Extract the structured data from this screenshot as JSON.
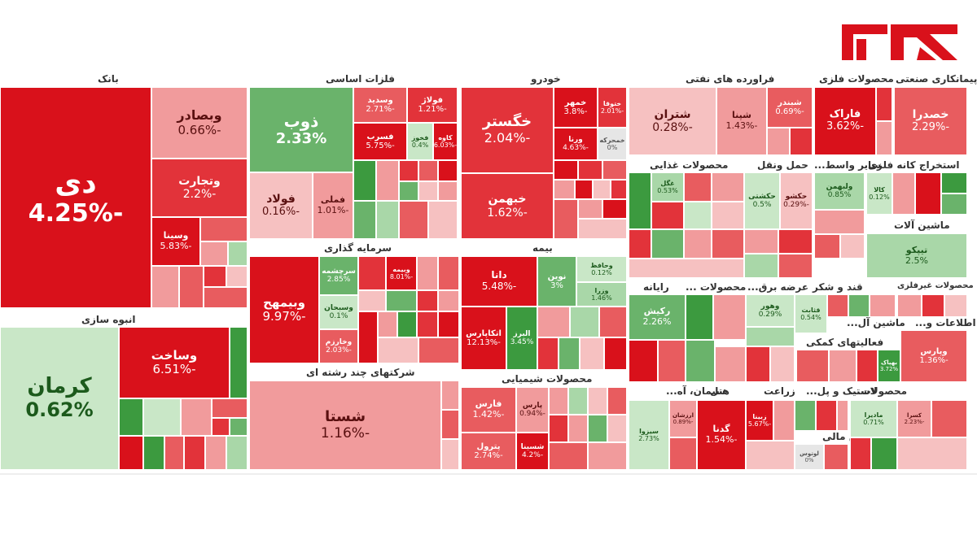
{
  "colors": {
    "strong_red": "#d9111b",
    "red": "#e2333a",
    "mid_red": "#e85c5f",
    "light_red": "#f19b9c",
    "pale_red": "#f6c1c1",
    "strong_green": "#3c9a3f",
    "green": "#6ab36b",
    "light_green": "#a9d7a8",
    "pale_green": "#c9e7c7",
    "logo_red": "#d9111b"
  },
  "logo": {
    "icon": "rokna-logo"
  },
  "sectors": {
    "bank": "بانک",
    "metals": "فلزات اساسی",
    "auto": "خودرو",
    "refinery": "فراورده های نفتی",
    "metal_products": "محصولات فلزی",
    "contracting": "پیمانکاری صنعتی",
    "mass_builder": "انبوه سازی",
    "investment": "سرمایه گذاری",
    "insurance": "بیمه",
    "diversified": "شرکتهای چند رشته ای",
    "chemicals": "محصولات شیمیایی",
    "food": "محصولات غذایی",
    "transport": "حمل ونقل",
    "other_mining": "سایر واسط...",
    "mining": "استخراج کانه فلزی",
    "machinery": "ماشین آلات",
    "computer": "رایانه",
    "products": "محصولات ...",
    "supply": "عرضه برق...",
    "sugar": "قند و شکر",
    "nonmetal": "محصولات غیرفلزی",
    "it": "اطلاعات و...",
    "machinery2": "ماشین آل...",
    "aux_fin": "فعالیتهای کمکی",
    "cement": "سیمان، آه...",
    "hotel": "هتل",
    "farming": "زراعت",
    "rubber": "لاستیک و پل...",
    "products2": "محصولات...",
    "finance": "تامین مالی"
  },
  "tiles": {
    "di": {
      "name": "دی",
      "pct": "-4.25%"
    },
    "vbsader": {
      "name": "وبصادر",
      "pct": "-0.66%"
    },
    "vtejarat": {
      "name": "وتجارت",
      "pct": "-2.2%"
    },
    "vsina": {
      "name": "وسینا",
      "pct": "-5.83%"
    },
    "zob": {
      "name": "ذوب",
      "pct": "2.33%"
    },
    "foolad": {
      "name": "فولاد",
      "pct": "-0.16%"
    },
    "fameli": {
      "name": "فملی",
      "pct": "-1.01%"
    },
    "vsadid": {
      "name": "وسدید",
      "pct": "-2.71%"
    },
    "foolaj": {
      "name": "فولاژ",
      "pct": "-1.21%"
    },
    "fesorb": {
      "name": "فسرب",
      "pct": "-5.75%"
    },
    "fakhooz": {
      "name": "فخوز",
      "pct": "0.4%"
    },
    "kave": {
      "name": "کاوه",
      "pct": "-6.03%"
    },
    "khegostar": {
      "name": "خگستر",
      "pct": "-2.04%"
    },
    "khebahman": {
      "name": "خبهمن",
      "pct": "-1.62%"
    },
    "khemehr": {
      "name": "خمهر",
      "pct": "-3.8%"
    },
    "khootoo": {
      "name": "ختوقا",
      "pct": "-2.01%"
    },
    "khvirna": {
      "name": "ورنا",
      "pct": "-4.63%"
    },
    "khcharkheh": {
      "name": "خمحرکه",
      "pct": "0%"
    },
    "shetran": {
      "name": "شتران",
      "pct": "-0.28%"
    },
    "shepna": {
      "name": "شپنا",
      "pct": "-1.43%"
    },
    "shebandar": {
      "name": "شبندر",
      "pct": "-0.69%"
    },
    "farak": {
      "name": "فاراک",
      "pct": "-3.62%"
    },
    "khsadra": {
      "name": "خصدرا",
      "pct": "-2.29%"
    },
    "kerman": {
      "name": "کرمان",
      "pct": "0.62%"
    },
    "vsakht": {
      "name": "وساخت",
      "pct": "-6.51%"
    },
    "vbimeh": {
      "name": "وبیمهح",
      "pct": "-9.97%"
    },
    "serchesh": {
      "name": "سرچشمه",
      "pct": "2.85%"
    },
    "vsepahan": {
      "name": "وسبحان",
      "pct": "0.1%"
    },
    "vkharazm": {
      "name": "وخارزم",
      "pct": "-2.03%"
    },
    "vbeemeh": {
      "name": "وبیمه",
      "pct": "-8.01%"
    },
    "dana": {
      "name": "دانا",
      "pct": "-5.48%"
    },
    "novin": {
      "name": "نوین",
      "pct": "3%"
    },
    "vhafez": {
      "name": "وحافظ",
      "pct": "0.12%"
    },
    "vkaran": {
      "name": "وزرا",
      "pct": "1.46%"
    },
    "atiyeh": {
      "name": "اتکاپارس",
      "pct": "-12.13%"
    },
    "alborz": {
      "name": "البرز",
      "pct": "3.45%"
    },
    "shasta": {
      "name": "شستا",
      "pct": "-1.16%"
    },
    "fars": {
      "name": "فارس",
      "pct": "-1.42%"
    },
    "pars": {
      "name": "پارس",
      "pct": "-0.94%"
    },
    "petrol": {
      "name": "پترول",
      "pct": "-2.74%"
    },
    "shesina": {
      "name": "شسینا",
      "pct": "-4.2%"
    },
    "kalahan": {
      "name": "غگل",
      "pct": "0.53%"
    },
    "garekat": {
      "name": "حکشتی",
      "pct": "0.5%"
    },
    "hkakoh": {
      "name": "حکشو",
      "pct": "-0.29%"
    },
    "vlbahman": {
      "name": "ولبهمن",
      "pct": "0.85%"
    },
    "kala": {
      "name": "کالا",
      "pct": "0.12%"
    },
    "tipko": {
      "name": "تیپکو",
      "pct": "2.5%"
    },
    "rakish": {
      "name": "رکیش",
      "pct": "2.26%"
    },
    "vhor": {
      "name": "وهور",
      "pct": "0.29%"
    },
    "qathabet": {
      "name": "قثابت",
      "pct": "0.54%"
    },
    "vkarakh": {
      "name": "بهپاک",
      "pct": "3.72%"
    },
    "vrazin": {
      "name": "وپارس",
      "pct": "-1.36%"
    },
    "kalsak": {
      "name": "کسرا",
      "pct": "-2.23%"
    },
    "gedna": {
      "name": "گدنا",
      "pct": "-1.54%"
    },
    "zebina": {
      "name": "زبینا",
      "pct": "-5.67%"
    },
    "madira": {
      "name": "مادیرا",
      "pct": "0.71%"
    },
    "sarooq": {
      "name": "سیزوا",
      "pct": "2.73%"
    },
    "arzesh": {
      "name": "ارزشان",
      "pct": "-0.89%"
    },
    "fn": {
      "name": "لوتوس",
      "pct": "0%"
    }
  }
}
